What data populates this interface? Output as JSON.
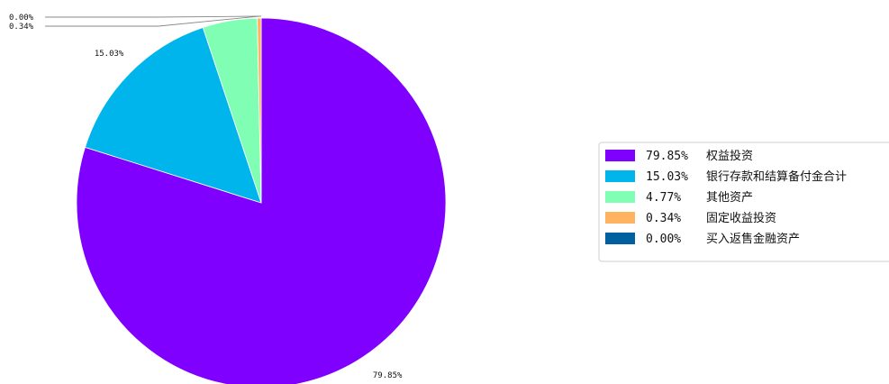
{
  "chart_data": {
    "type": "pie",
    "slices": [
      {
        "label": "权益投资",
        "value": 79.85,
        "display": "79.85%",
        "color": "#7f00ff"
      },
      {
        "label": "银行存款和结算备付金合计",
        "value": 15.03,
        "display": "15.03%",
        "color": "#00b5eb"
      },
      {
        "label": "其他资产",
        "value": 4.77,
        "display": "4.77%",
        "color": "#80ffb4"
      },
      {
        "label": "固定收益投资",
        "value": 0.34,
        "display": "0.34%",
        "color": "#ffb360"
      },
      {
        "label": "买入返售金融资产",
        "value": 0.0,
        "display": "0.00%",
        "color": "#0060a0"
      }
    ],
    "start": "12 o'clock",
    "direction": "clockwise",
    "legend_position": "right"
  }
}
